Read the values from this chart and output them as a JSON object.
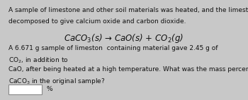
{
  "bg_color": "#c8c8c8",
  "content_bg": "#f0f0f0",
  "text_color": "#111111",
  "line1": "A sample of limestone and other soil materials was heated, and the limestone",
  "line2": "decomposed to give calcium oxide and carbon dioxide.",
  "equation": "CaCO$_3$(s) → CaO(s) + CO$_2$(g)",
  "line3a": "A 6.671 g sample of limeston",
  "line3b": "containing material gave 2.45 g of",
  "line4": "CO$_2$, in addition to",
  "line5": "CaO, after being heated at a high temperature. What was the mass percent of",
  "line6": "CaCO$_3$ in the original sample?",
  "percent_sign": "%",
  "font_size_body": 6.5,
  "font_size_eq": 8.5
}
